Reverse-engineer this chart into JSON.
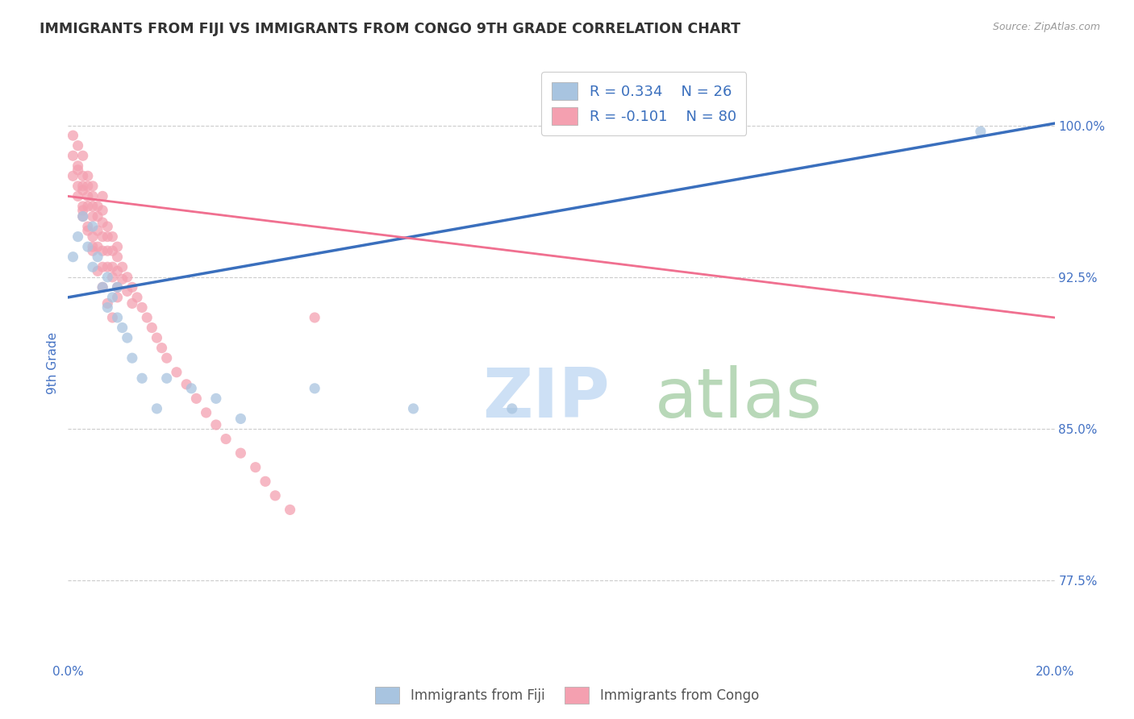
{
  "title": "IMMIGRANTS FROM FIJI VS IMMIGRANTS FROM CONGO 9TH GRADE CORRELATION CHART",
  "source_text": "Source: ZipAtlas.com",
  "ylabel": "9th Grade",
  "x_min": 0.0,
  "x_max": 0.2,
  "y_min": 0.735,
  "y_max": 1.03,
  "y_ticks": [
    0.775,
    0.85,
    0.925,
    1.0
  ],
  "y_tick_labels": [
    "77.5%",
    "85.0%",
    "92.5%",
    "100.0%"
  ],
  "x_ticks": [
    0.0,
    0.05,
    0.1,
    0.15,
    0.2
  ],
  "x_tick_labels": [
    "0.0%",
    "",
    "",
    "",
    "20.0%"
  ],
  "fiji_R": 0.334,
  "fiji_N": 26,
  "congo_R": -0.101,
  "congo_N": 80,
  "fiji_color": "#a8c4e0",
  "congo_color": "#f4a0b0",
  "fiji_line_color": "#3a6fbd",
  "congo_line_color": "#f07090",
  "background_color": "#ffffff",
  "grid_color": "#cccccc",
  "title_color": "#333333",
  "tick_label_color": "#4472c4",
  "watermark_zip_color": "#cde0f5",
  "watermark_atlas_color": "#b8d8b8",
  "legend_fiji_label": "Immigrants from Fiji",
  "legend_congo_label": "Immigrants from Congo",
  "fiji_scatter_x": [
    0.001,
    0.002,
    0.003,
    0.004,
    0.005,
    0.005,
    0.006,
    0.007,
    0.008,
    0.008,
    0.009,
    0.01,
    0.01,
    0.011,
    0.012,
    0.013,
    0.015,
    0.018,
    0.02,
    0.025,
    0.03,
    0.035,
    0.05,
    0.07,
    0.09,
    0.185
  ],
  "fiji_scatter_y": [
    0.935,
    0.945,
    0.955,
    0.94,
    0.93,
    0.95,
    0.935,
    0.92,
    0.925,
    0.91,
    0.915,
    0.905,
    0.92,
    0.9,
    0.895,
    0.885,
    0.875,
    0.86,
    0.875,
    0.87,
    0.865,
    0.855,
    0.87,
    0.86,
    0.86,
    0.997
  ],
  "congo_scatter_x": [
    0.001,
    0.001,
    0.001,
    0.002,
    0.002,
    0.002,
    0.002,
    0.003,
    0.003,
    0.003,
    0.003,
    0.003,
    0.004,
    0.004,
    0.004,
    0.004,
    0.004,
    0.005,
    0.005,
    0.005,
    0.005,
    0.005,
    0.005,
    0.006,
    0.006,
    0.006,
    0.006,
    0.007,
    0.007,
    0.007,
    0.007,
    0.007,
    0.007,
    0.008,
    0.008,
    0.008,
    0.008,
    0.009,
    0.009,
    0.009,
    0.009,
    0.01,
    0.01,
    0.01,
    0.01,
    0.01,
    0.011,
    0.011,
    0.012,
    0.012,
    0.013,
    0.013,
    0.014,
    0.015,
    0.016,
    0.017,
    0.018,
    0.019,
    0.02,
    0.022,
    0.024,
    0.026,
    0.028,
    0.03,
    0.032,
    0.035,
    0.038,
    0.04,
    0.042,
    0.045,
    0.002,
    0.003,
    0.003,
    0.004,
    0.005,
    0.006,
    0.007,
    0.008,
    0.009,
    0.05
  ],
  "congo_scatter_y": [
    0.995,
    0.985,
    0.975,
    0.99,
    0.98,
    0.97,
    0.965,
    0.985,
    0.975,
    0.97,
    0.96,
    0.955,
    0.975,
    0.97,
    0.965,
    0.96,
    0.95,
    0.97,
    0.965,
    0.96,
    0.955,
    0.945,
    0.94,
    0.96,
    0.955,
    0.948,
    0.94,
    0.965,
    0.958,
    0.952,
    0.945,
    0.938,
    0.93,
    0.95,
    0.945,
    0.938,
    0.93,
    0.945,
    0.938,
    0.93,
    0.925,
    0.94,
    0.935,
    0.928,
    0.92,
    0.915,
    0.93,
    0.924,
    0.925,
    0.918,
    0.92,
    0.912,
    0.915,
    0.91,
    0.905,
    0.9,
    0.895,
    0.89,
    0.885,
    0.878,
    0.872,
    0.865,
    0.858,
    0.852,
    0.845,
    0.838,
    0.831,
    0.824,
    0.817,
    0.81,
    0.978,
    0.968,
    0.958,
    0.948,
    0.938,
    0.928,
    0.92,
    0.912,
    0.905,
    0.905
  ],
  "fiji_trend_x": [
    0.0,
    0.2
  ],
  "fiji_trend_y": [
    0.915,
    1.001
  ],
  "congo_trend_x": [
    0.0,
    0.2
  ],
  "congo_trend_y": [
    0.965,
    0.905
  ]
}
